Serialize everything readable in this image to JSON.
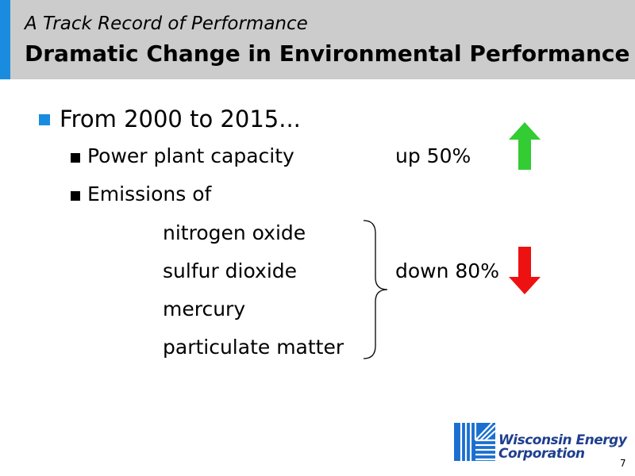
{
  "header": {
    "kicker": "A Track Record of Performance",
    "title": "Dramatic Change in Environmental Performance"
  },
  "body": {
    "intro": "From 2000 to 2015...",
    "capacity_label": "Power plant capacity",
    "capacity_value": "up 50%",
    "emissions_label": "Emissions of",
    "pollutants": [
      "nitrogen oxide",
      "sulfur dioxide",
      "mercury",
      "particulate matter"
    ],
    "emissions_value": "down 80%"
  },
  "indicators": {
    "up_arrow": {
      "icon": "up-arrow-icon",
      "color": "#33cc33"
    },
    "down_arrow": {
      "icon": "down-arrow-icon",
      "color": "#ee1111"
    }
  },
  "logo": {
    "line1": "Wisconsin Energy",
    "line2": "Corporation",
    "color": "#1f3f8e"
  },
  "page_number": "7",
  "colors": {
    "header_bg": "#cccccc",
    "accent": "#1a8ce0"
  }
}
